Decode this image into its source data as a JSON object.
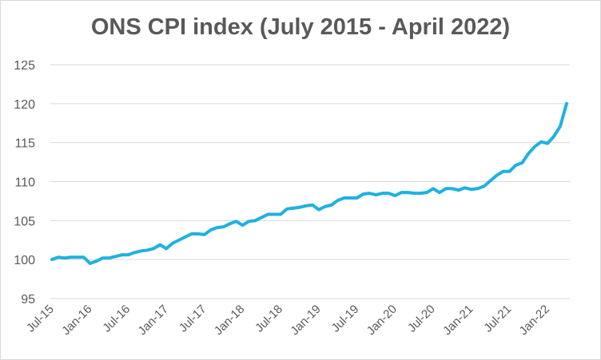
{
  "chart_data": {
    "type": "line",
    "title": "ONS CPI index (July 2015 - April 2022)",
    "xlabel": "",
    "ylabel": "",
    "ylim": [
      95,
      125
    ],
    "y_ticks": [
      95,
      100,
      105,
      110,
      115,
      120,
      125
    ],
    "x_tick_labels": [
      "Jul-15",
      "Jan-16",
      "Jul-16",
      "Jan-17",
      "Jul-17",
      "Jan-18",
      "Jul-18",
      "Jan-19",
      "Jul-19",
      "Jan-20",
      "Jul-20",
      "Jan-21",
      "Jul-21",
      "Jan-22"
    ],
    "grid": "horizontal",
    "legend": "none",
    "line_color": "#1fb1e0",
    "series": [
      {
        "x": [
          "Jul-15",
          "Aug-15",
          "Sep-15",
          "Oct-15",
          "Nov-15",
          "Dec-15",
          "Jan-16",
          "Feb-16",
          "Mar-16",
          "Apr-16",
          "May-16",
          "Jun-16",
          "Jul-16",
          "Aug-16",
          "Sep-16",
          "Oct-16",
          "Nov-16",
          "Dec-16",
          "Jan-17",
          "Feb-17",
          "Mar-17",
          "Apr-17",
          "May-17",
          "Jun-17",
          "Jul-17",
          "Aug-17",
          "Sep-17",
          "Oct-17",
          "Nov-17",
          "Dec-17",
          "Jan-18",
          "Feb-18",
          "Mar-18",
          "Apr-18",
          "May-18",
          "Jun-18",
          "Jul-18",
          "Aug-18",
          "Sep-18",
          "Oct-18",
          "Nov-18",
          "Dec-18",
          "Jan-19",
          "Feb-19",
          "Mar-19",
          "Apr-19",
          "May-19",
          "Jun-19",
          "Jul-19",
          "Aug-19",
          "Sep-19",
          "Oct-19",
          "Nov-19",
          "Dec-19",
          "Jan-20",
          "Feb-20",
          "Mar-20",
          "Apr-20",
          "May-20",
          "Jun-20",
          "Jul-20",
          "Aug-20",
          "Sep-20",
          "Oct-20",
          "Nov-20",
          "Dec-20",
          "Jan-21",
          "Feb-21",
          "Mar-21",
          "Apr-21",
          "May-21",
          "Jun-21",
          "Jul-21",
          "Aug-21",
          "Sep-21",
          "Oct-21",
          "Nov-21",
          "Dec-21",
          "Jan-22",
          "Feb-22",
          "Mar-22",
          "Apr-22"
        ],
        "values": [
          100.0,
          100.3,
          100.2,
          100.3,
          100.3,
          100.3,
          99.5,
          99.8,
          100.2,
          100.2,
          100.4,
          100.6,
          100.6,
          100.9,
          101.1,
          101.2,
          101.4,
          101.9,
          101.4,
          102.1,
          102.5,
          102.9,
          103.3,
          103.3,
          103.2,
          103.8,
          104.1,
          104.2,
          104.6,
          104.9,
          104.4,
          104.9,
          105.0,
          105.4,
          105.8,
          105.8,
          105.8,
          106.5,
          106.6,
          106.7,
          106.9,
          107.0,
          106.4,
          106.8,
          107.0,
          107.6,
          107.9,
          107.9,
          107.9,
          108.4,
          108.5,
          108.3,
          108.5,
          108.5,
          108.2,
          108.6,
          108.6,
          108.5,
          108.5,
          108.6,
          109.1,
          108.6,
          109.1,
          109.1,
          108.9,
          109.2,
          109.0,
          109.1,
          109.4,
          110.1,
          110.8,
          111.3,
          111.3,
          112.1,
          112.4,
          113.6,
          114.5,
          115.1,
          114.9,
          115.8,
          117.1,
          120.0
        ]
      }
    ]
  }
}
